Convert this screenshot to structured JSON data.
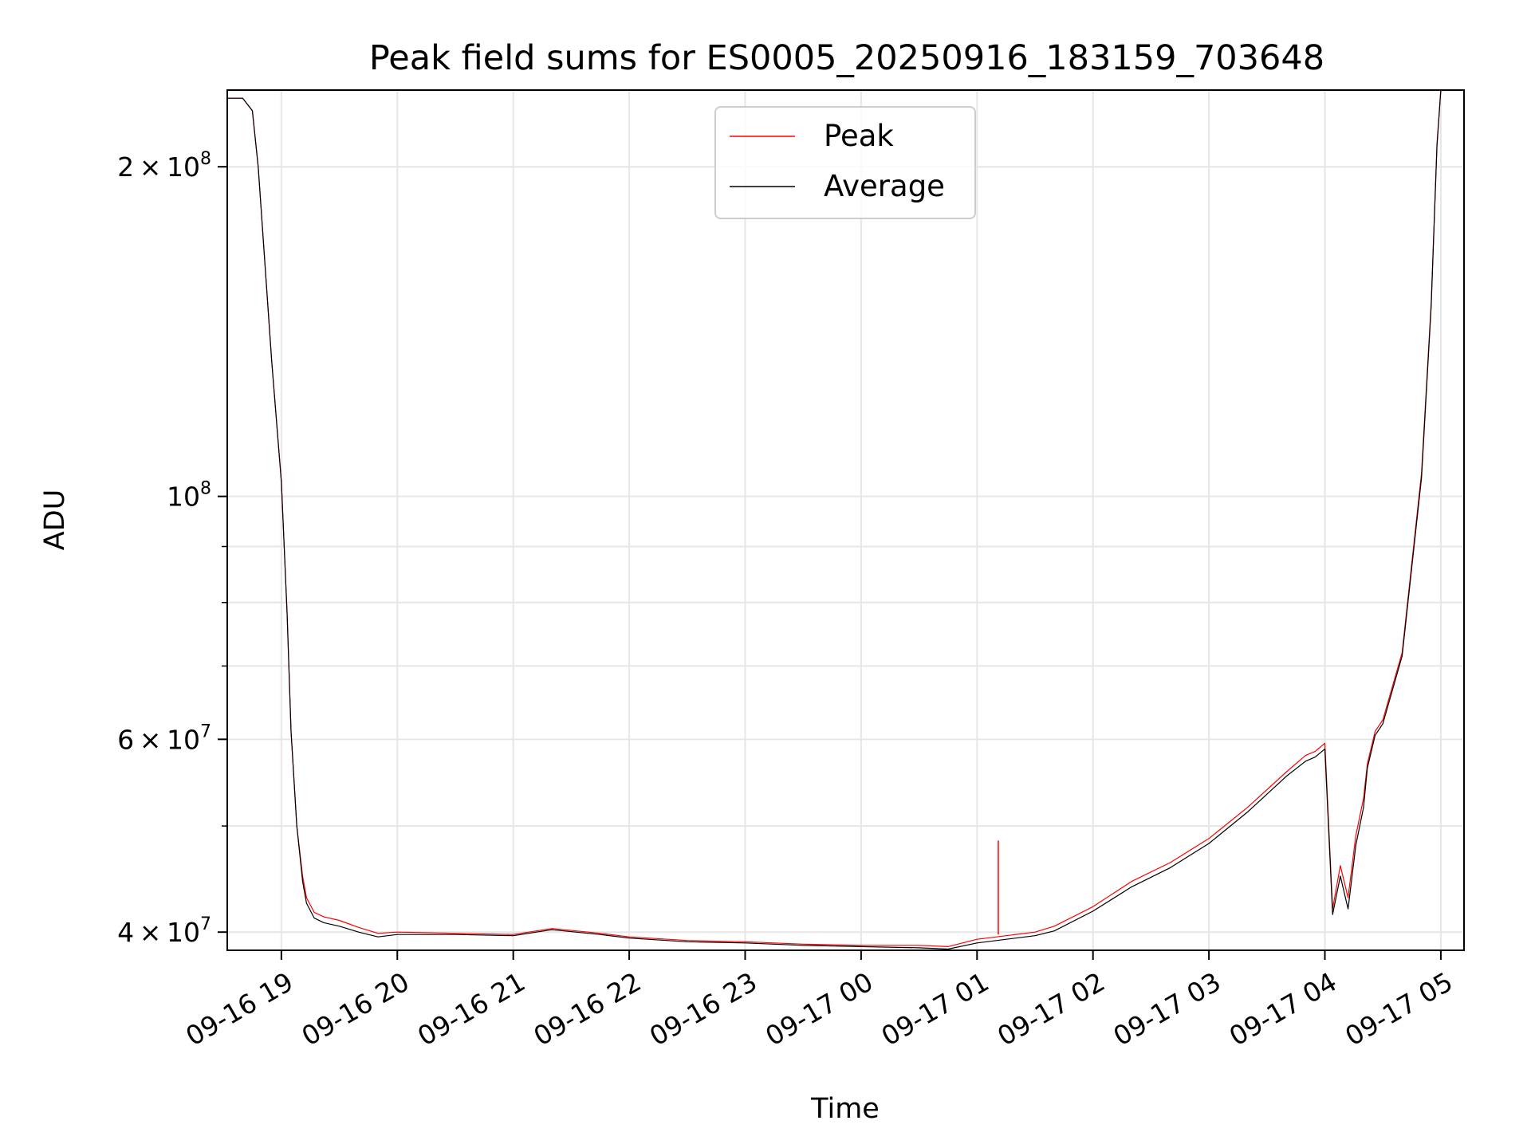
{
  "chart_data": {
    "type": "line",
    "title": "Peak field sums for ES0005_20250916_183159_703648",
    "xlabel": "Time",
    "ylabel": "ADU",
    "y_scale": "log",
    "ylim": [
      38500000,
      235000000
    ],
    "xlim": [
      "2025-09-16T18:32",
      "2025-09-17T05:12"
    ],
    "grid": true,
    "legend_position": "top-center",
    "x_ticks": [
      "09-16 19",
      "09-16 20",
      "09-16 21",
      "09-16 22",
      "09-16 23",
      "09-17 00",
      "09-17 01",
      "09-17 02",
      "09-17 03",
      "09-17 04",
      "09-17 05"
    ],
    "x_tick_times": [
      "2025-09-16T19:00",
      "2025-09-16T20:00",
      "2025-09-16T21:00",
      "2025-09-16T22:00",
      "2025-09-16T23:00",
      "2025-09-17T00:00",
      "2025-09-17T01:00",
      "2025-09-17T02:00",
      "2025-09-17T03:00",
      "2025-09-17T04:00",
      "2025-09-17T05:00"
    ],
    "y_ticks": [
      {
        "value": 200000000,
        "mantissa": "2",
        "base": "10",
        "exp": "8"
      },
      {
        "value": 100000000,
        "mantissa": "",
        "base": "10",
        "exp": "8"
      },
      {
        "value": 60000000,
        "mantissa": "6",
        "base": "10",
        "exp": "7"
      },
      {
        "value": 40000000,
        "mantissa": "4",
        "base": "10",
        "exp": "7"
      }
    ],
    "y_minor_ticks": [
      50000000,
      70000000,
      80000000,
      90000000
    ],
    "x": [
      "2025-09-16T18:32",
      "2025-09-16T18:40",
      "2025-09-16T18:45",
      "2025-09-16T18:48",
      "2025-09-16T18:55",
      "2025-09-16T19:00",
      "2025-09-16T19:03",
      "2025-09-16T19:05",
      "2025-09-16T19:08",
      "2025-09-16T19:11",
      "2025-09-16T19:13",
      "2025-09-16T19:17",
      "2025-09-16T19:22",
      "2025-09-16T19:30",
      "2025-09-16T19:40",
      "2025-09-16T19:50",
      "2025-09-16T20:00",
      "2025-09-16T20:30",
      "2025-09-16T21:00",
      "2025-09-16T21:20",
      "2025-09-16T21:45",
      "2025-09-16T22:00",
      "2025-09-16T22:30",
      "2025-09-16T23:00",
      "2025-09-16T23:30",
      "2025-09-17T00:00",
      "2025-09-17T00:30",
      "2025-09-17T00:45",
      "2025-09-17T01:00",
      "2025-09-17T01:30",
      "2025-09-17T01:40",
      "2025-09-17T02:00",
      "2025-09-17T02:20",
      "2025-09-17T02:40",
      "2025-09-17T03:00",
      "2025-09-17T03:20",
      "2025-09-17T03:40",
      "2025-09-17T03:50",
      "2025-09-17T03:55",
      "2025-09-17T04:00",
      "2025-09-17T04:04",
      "2025-09-17T04:08",
      "2025-09-17T04:12",
      "2025-09-17T04:16",
      "2025-09-17T04:20",
      "2025-09-17T04:22",
      "2025-09-17T04:26",
      "2025-09-17T04:30",
      "2025-09-17T04:40",
      "2025-09-17T04:50",
      "2025-09-17T04:55",
      "2025-09-17T04:58",
      "2025-09-17T05:00"
    ],
    "series": [
      {
        "name": "Peak",
        "color": "#ff0000",
        "stroke_width": 1.2,
        "values": [
          231000000,
          231000000,
          225000000,
          200000000,
          133000000,
          103000000,
          78000000,
          61000000,
          50000000,
          45000000,
          43000000,
          41700000,
          41300000,
          41000000,
          40400000,
          39900000,
          40000000,
          39900000,
          39800000,
          40300000,
          39900000,
          39600000,
          39300000,
          39200000,
          39000000,
          38900000,
          38900000,
          38800000,
          39400000,
          40000000,
          40500000,
          42200000,
          44500000,
          46300000,
          48700000,
          52000000,
          56000000,
          58000000,
          58500000,
          59500000,
          42000000,
          46000000,
          43000000,
          49000000,
          53000000,
          57000000,
          61000000,
          62500000,
          72000000,
          105000000,
          150000000,
          210000000,
          235000000
        ]
      },
      {
        "name": "Average",
        "color": "#000000",
        "stroke_width": 1.2,
        "values": [
          231000000,
          231000000,
          225000000,
          200000000,
          133000000,
          103000000,
          78000000,
          61000000,
          50000000,
          44500000,
          42500000,
          41200000,
          40800000,
          40500000,
          40000000,
          39600000,
          39800000,
          39800000,
          39700000,
          40200000,
          39800000,
          39500000,
          39200000,
          39100000,
          38900000,
          38800000,
          38700000,
          38600000,
          39100000,
          39700000,
          40100000,
          41800000,
          44000000,
          45800000,
          48200000,
          51500000,
          55500000,
          57300000,
          57800000,
          58800000,
          41500000,
          45000000,
          42000000,
          48000000,
          52000000,
          56500000,
          60500000,
          62000000,
          71500000,
          104000000,
          149000000,
          209000000,
          235000000
        ]
      }
    ],
    "annotations": [
      {
        "series": "Peak",
        "x": "2025-09-17T01:11",
        "y": 48500000
      }
    ],
    "legend": [
      {
        "label": "Peak",
        "color": "#ff0000"
      },
      {
        "label": "Average",
        "color": "#000000"
      }
    ]
  }
}
